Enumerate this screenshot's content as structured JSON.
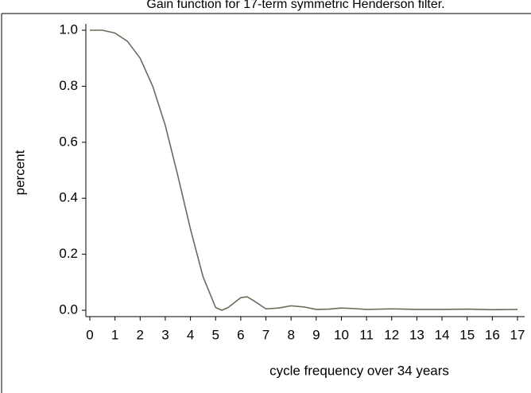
{
  "chart_data": {
    "type": "line",
    "title": "Gain function for 17-term symmetric Henderson filter.",
    "x_label": "cycle frequency over 34 years",
    "y_label": "percent",
    "x": [
      0,
      0.5,
      1,
      1.5,
      2,
      2.5,
      3,
      3.5,
      4,
      4.5,
      5,
      5.25,
      5.5,
      6,
      6.25,
      6.5,
      7,
      7.5,
      8,
      8.5,
      9,
      9.5,
      10,
      10.5,
      11,
      12,
      13,
      14,
      15,
      16,
      17
    ],
    "series": [
      {
        "name": "gain",
        "color": "#6b6b5b",
        "values": [
          1.0,
          1.0,
          0.99,
          0.96,
          0.9,
          0.8,
          0.66,
          0.48,
          0.29,
          0.12,
          0.01,
          0.0,
          0.01,
          0.045,
          0.048,
          0.035,
          0.005,
          0.008,
          0.016,
          0.012,
          0.003,
          0.004,
          0.008,
          0.006,
          0.003,
          0.005,
          0.003,
          0.003,
          0.004,
          0.002,
          0.003
        ]
      }
    ],
    "xlim": [
      0,
      17
    ],
    "xticks": [
      0,
      1,
      2,
      3,
      4,
      5,
      6,
      7,
      8,
      9,
      10,
      11,
      12,
      13,
      14,
      15,
      16,
      17
    ],
    "ylim": [
      0,
      1
    ],
    "yticks": [
      {
        "value": 0,
        "label": "0.0"
      },
      0.2,
      0.4,
      0.6,
      0.8,
      {
        "value": 1,
        "label": "1.0"
      }
    ]
  }
}
